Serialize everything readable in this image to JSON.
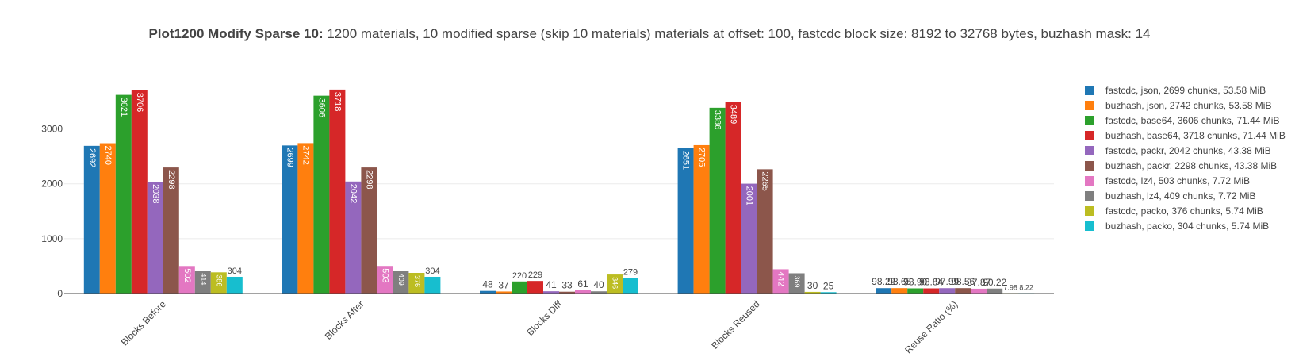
{
  "title": {
    "bold": "Plot1200 Modify Sparse 10:",
    "rest": " 1200 materials, 10 modified sparse (skip 10 materials) materials at offset: 100, fastcdc block size: 8192 to 32768 bytes, buzhash mask: 14"
  },
  "chart_data": {
    "type": "bar",
    "categories": [
      "Blocks Before",
      "Blocks After",
      "Blocks Diff",
      "Blocks Reused",
      "Reuse Ratio (%)"
    ],
    "series": [
      {
        "name": "fastcdc, json, 2699 chunks, 53.58 MiB",
        "color": "#1f77b4",
        "values": [
          2692,
          2699,
          48,
          2651,
          98.22
        ],
        "labels": [
          "2692",
          "2699",
          "48",
          "2651",
          "98.22"
        ]
      },
      {
        "name": "buzhash, json, 2742 chunks, 53.58 MiB",
        "color": "#ff7f0e",
        "values": [
          2740,
          2742,
          37,
          2705,
          98.65
        ],
        "labels": [
          "2740",
          "2742",
          "37",
          "2705",
          "98.65"
        ]
      },
      {
        "name": "fastcdc, base64, 3606 chunks, 71.44 MiB",
        "color": "#2ca02c",
        "values": [
          3621,
          3606,
          220,
          3386,
          93.9
        ],
        "labels": [
          "3621",
          "3606",
          "220",
          "3386",
          "93.90"
        ]
      },
      {
        "name": "buzhash, base64, 3718 chunks, 71.44 MiB",
        "color": "#d62728",
        "values": [
          3706,
          3718,
          229,
          3489,
          93.84
        ],
        "labels": [
          "3706",
          "3718",
          "229",
          "3489",
          "93.84"
        ]
      },
      {
        "name": "fastcdc, packr, 2042 chunks, 43.38 MiB",
        "color": "#9467bd",
        "values": [
          2038,
          2042,
          41,
          2001,
          97.99
        ],
        "labels": [
          "2038",
          "2042",
          "41",
          "2001",
          "97.99"
        ]
      },
      {
        "name": "buzhash, packr, 2298 chunks, 43.38 MiB",
        "color": "#8c564b",
        "values": [
          2298,
          2298,
          33,
          2265,
          98.56
        ],
        "labels": [
          "2298",
          "2298",
          "33",
          "2265",
          "98.56"
        ]
      },
      {
        "name": "fastcdc, lz4, 503 chunks, 7.72 MiB",
        "color": "#e377c2",
        "values": [
          502,
          503,
          61,
          442,
          87.87
        ],
        "labels": [
          "502",
          "503",
          "61",
          "442",
          "87.87"
        ]
      },
      {
        "name": "buzhash, lz4, 409 chunks, 7.72 MiB",
        "color": "#7f7f7f",
        "values": [
          414,
          409,
          40,
          369,
          90.22
        ],
        "labels": [
          "414",
          "409",
          "40",
          "369",
          "90.22"
        ]
      },
      {
        "name": "fastcdc, packo, 376 chunks, 5.74 MiB",
        "color": "#bcbd22",
        "values": [
          386,
          376,
          346,
          30,
          7.98
        ],
        "labels": [
          "386",
          "376",
          "346",
          "30",
          "7.98"
        ]
      },
      {
        "name": "buzhash, packo, 304 chunks, 5.74 MiB",
        "color": "#17becf",
        "values": [
          304,
          304,
          279,
          25,
          8.22
        ],
        "labels": [
          "304",
          "304",
          "279",
          "25",
          "8.22"
        ]
      }
    ],
    "yticks": [
      0,
      1000,
      2000,
      3000
    ],
    "ylim": [
      0,
      3900
    ],
    "grid": true,
    "legend_position": "right"
  }
}
